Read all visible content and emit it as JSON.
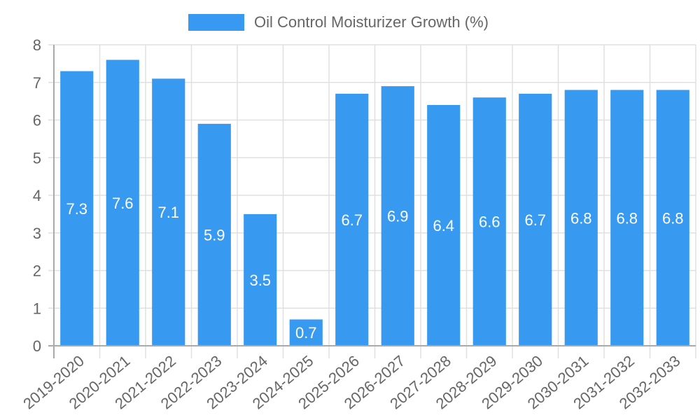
{
  "chart_data": {
    "type": "bar",
    "title": "",
    "legend": [
      "Oil Control Moisturizer Growth (%)"
    ],
    "legend_position": "top",
    "categories": [
      "2019-2020",
      "2020-2021",
      "2021-2022",
      "2022-2023",
      "2023-2024",
      "2024-2025",
      "2025-2026",
      "2026-2027",
      "2027-2028",
      "2028-2029",
      "2029-2030",
      "2030-2031",
      "2031-2032",
      "2032-2033"
    ],
    "series": [
      {
        "name": "Oil Control Moisturizer Growth (%)",
        "values": [
          7.3,
          7.6,
          7.1,
          5.9,
          3.5,
          0.7,
          6.7,
          6.9,
          6.4,
          6.6,
          6.7,
          6.8,
          6.8,
          6.8
        ],
        "color": "#379af0"
      }
    ],
    "xlabel": "",
    "ylabel": "",
    "ylim": [
      0,
      8
    ],
    "yticks": [
      0,
      1,
      2,
      3,
      4,
      5,
      6,
      7,
      8
    ],
    "grid": true,
    "data_labels": true
  },
  "legend": {
    "label": "Oil Control Moisturizer Growth (%)"
  }
}
